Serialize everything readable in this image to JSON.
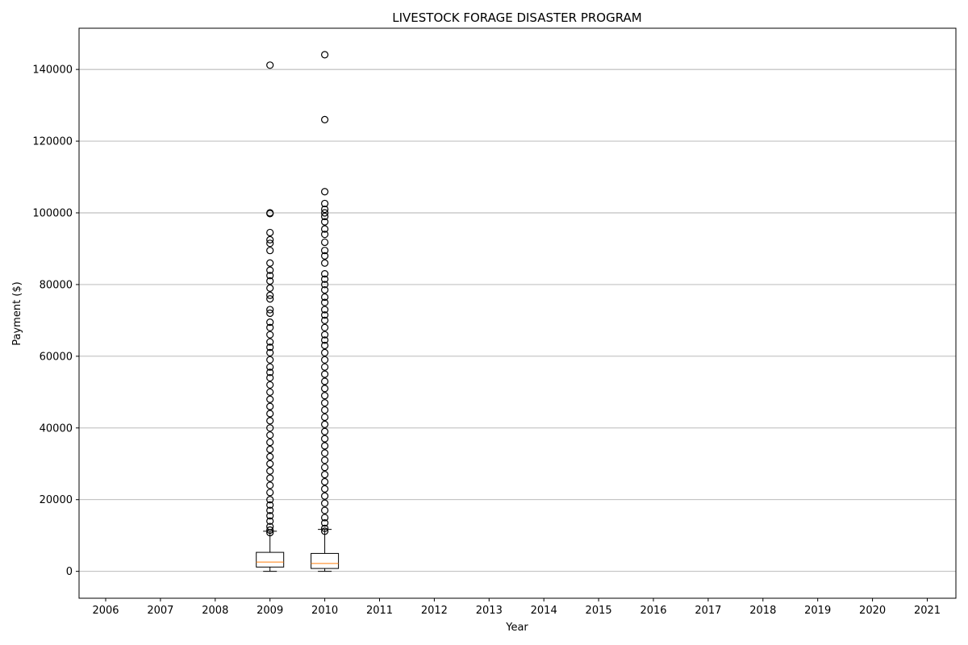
{
  "chart_data": {
    "type": "box",
    "title": "LIVESTOCK FORAGE DISASTER  PROGRAM",
    "xlabel": "Year",
    "ylabel": "Payment ($)",
    "categories": [
      "2006",
      "2007",
      "2008",
      "2009",
      "2010",
      "2011",
      "2012",
      "2013",
      "2014",
      "2015",
      "2016",
      "2017",
      "2018",
      "2019",
      "2020",
      "2021"
    ],
    "ylim": [
      -7500,
      151500
    ],
    "yticks": [
      0,
      20000,
      40000,
      60000,
      80000,
      100000,
      120000,
      140000
    ],
    "ytick_labels": [
      "0",
      "20000",
      "40000",
      "60000",
      "80000",
      "100000",
      "120000",
      "140000"
    ],
    "grid": "y",
    "boxes": [
      {
        "category": "2009",
        "whisker_low": 0,
        "q1": 1200,
        "median": 2600,
        "q3": 5300,
        "whisker_high": 11200,
        "outliers": [
          10800,
          11500,
          12500,
          14000,
          15500,
          17000,
          18500,
          20000,
          22000,
          24000,
          26000,
          28000,
          30000,
          32000,
          34000,
          36000,
          38000,
          40000,
          42000,
          44000,
          46000,
          48000,
          50000,
          52000,
          54000,
          55500,
          57000,
          59000,
          61000,
          62500,
          64000,
          66000,
          68000,
          69500,
          72000,
          73000,
          76000,
          77000,
          79000,
          81000,
          82500,
          84000,
          86000,
          89500,
          91500,
          92500,
          94500,
          99800,
          100000,
          141200
        ]
      },
      {
        "category": "2010",
        "whisker_low": 0,
        "q1": 800,
        "median": 2200,
        "q3": 5000,
        "whisker_high": 11700,
        "outliers": [
          11200,
          12000,
          13500,
          15000,
          17000,
          19000,
          21000,
          23000,
          25000,
          27000,
          29000,
          31000,
          33000,
          35000,
          37000,
          39000,
          41000,
          43000,
          45000,
          47000,
          49000,
          51000,
          53000,
          55000,
          57000,
          59000,
          61000,
          63000,
          64500,
          66000,
          68000,
          70000,
          71500,
          73000,
          75000,
          76500,
          78500,
          80000,
          81500,
          83000,
          86000,
          88000,
          89500,
          91800,
          94000,
          95500,
          97500,
          99000,
          100000,
          101000,
          102600,
          105900,
          126000,
          144100
        ]
      }
    ]
  }
}
